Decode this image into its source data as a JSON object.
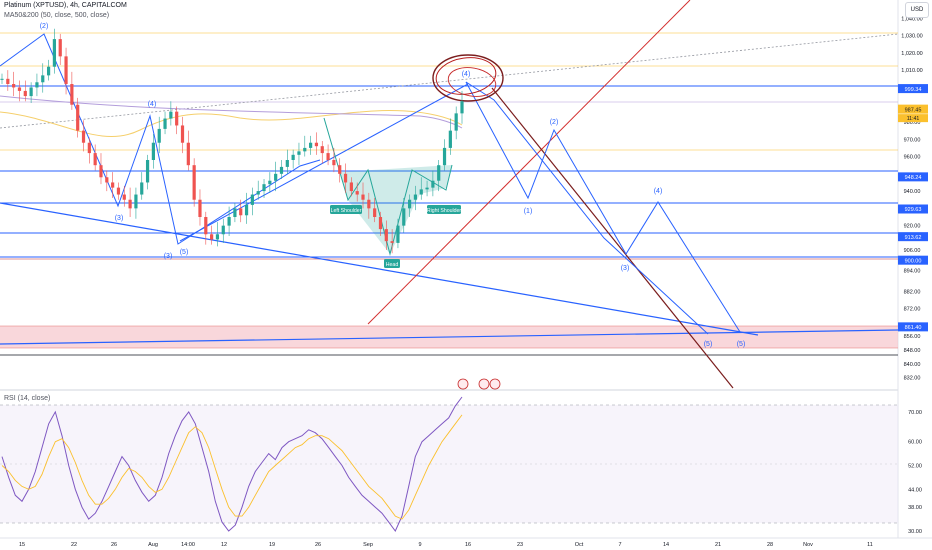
{
  "header": {
    "title": "Platinum (XPTUSD), 4h, CAPITALCOM",
    "indicator": "MA50&200 (50, close, 500, close)",
    "rsi_label": "RSI (14, close)",
    "currency": "USD"
  },
  "chart_data": [
    {
      "type": "line",
      "title": "Platinum (XPTUSD), 4h, CAPITALCOM",
      "y_range": [
        826,
        1046
      ],
      "grid": false,
      "y_ticks": [
        "1,040.00",
        "1,030.00",
        "1,020.00",
        "1,010.00",
        "980.00",
        "970.00",
        "960.00",
        "940.00",
        "920.00",
        "906.00",
        "894.00",
        "882.00",
        "872.00",
        "856.00",
        "848.00",
        "840.00",
        "832.00"
      ],
      "highlighted_prices": [
        {
          "label": "999.34",
          "value": 999.34,
          "color": "#2962ff"
        },
        {
          "label": "987.45",
          "value": 987.45,
          "color": "#fbc02d"
        },
        {
          "label": "948.24",
          "value": 948.24,
          "color": "#2962ff"
        },
        {
          "label": "929.63",
          "value": 929.63,
          "color": "#2962ff"
        },
        {
          "label": "913.62",
          "value": 913.62,
          "color": "#2962ff"
        },
        {
          "label": "900.00",
          "value": 900.0,
          "color": "#2962ff"
        },
        {
          "label": "861.40",
          "value": 861.4,
          "color": "#2962ff"
        }
      ],
      "countdown": "11:41",
      "x_ticks": [
        "15",
        "22",
        "26",
        "Aug",
        "14:00",
        "12",
        "19",
        "26",
        "Sep",
        "9",
        "16",
        "23",
        "Oct",
        "7",
        "14",
        "21",
        "28",
        "Nov",
        "11"
      ],
      "pattern_labels": [
        "Left Shoulder",
        "Head",
        "Right Shoulder"
      ],
      "wave_labels": [
        "(1)",
        "(2)",
        "(3)",
        "(4)",
        "(5)"
      ],
      "price_series": {
        "values": [
          1005,
          1002,
          1000,
          998,
          995,
          1000,
          1003,
          1007,
          1012,
          1028,
          1018,
          1002,
          990,
          975,
          968,
          962,
          955,
          948,
          945,
          942,
          938,
          935,
          930,
          938,
          945,
          958,
          968,
          976,
          982,
          986,
          978,
          968,
          955,
          935,
          925,
          915,
          912,
          915,
          920,
          925,
          930,
          926,
          932,
          938,
          940,
          944,
          946,
          950,
          954,
          958,
          961,
          963,
          965,
          968,
          966,
          962,
          958,
          955,
          950,
          945,
          940,
          938,
          935,
          930,
          925,
          918,
          911,
          910,
          920,
          930,
          935,
          938,
          941,
          942,
          946,
          955,
          965,
          975,
          985,
          992
        ]
      }
    },
    {
      "type": "line",
      "title": "RSI (14, close)",
      "y_range": [
        28,
        75
      ],
      "y_ticks": [
        "70.00",
        "60.00",
        "52.00",
        "44.00",
        "38.00",
        "30.00"
      ],
      "series": [
        {
          "name": "RSI",
          "values": [
            55,
            48,
            42,
            40,
            44,
            50,
            58,
            66,
            70,
            62,
            52,
            44,
            38,
            34,
            36,
            40,
            45,
            50,
            55,
            52,
            47,
            43,
            40,
            42,
            48,
            56,
            62,
            67,
            70,
            66,
            58,
            50,
            40,
            33,
            30,
            32,
            38,
            45,
            50,
            53,
            56,
            54,
            58,
            60,
            61,
            62,
            64,
            63,
            61,
            58,
            55,
            52,
            48,
            45,
            42,
            40,
            38,
            36,
            33,
            30,
            35,
            45,
            55,
            60,
            62,
            64,
            66,
            68,
            72,
            75
          ]
        },
        {
          "name": "RSI MA",
          "values": [
            52,
            50,
            47,
            45,
            44,
            45,
            49,
            55,
            60,
            61,
            58,
            53,
            47,
            42,
            39,
            39,
            41,
            44,
            48,
            51,
            50,
            48,
            45,
            43,
            44,
            48,
            53,
            58,
            63,
            65,
            63,
            58,
            51,
            44,
            38,
            35,
            35,
            38,
            42,
            46,
            50,
            52,
            54,
            56,
            58,
            59,
            61,
            62,
            62,
            61,
            59,
            57,
            54,
            51,
            48,
            45,
            43,
            41,
            38,
            35,
            34,
            37,
            42,
            47,
            52,
            56,
            60,
            63,
            66,
            69
          ]
        }
      ]
    }
  ]
}
